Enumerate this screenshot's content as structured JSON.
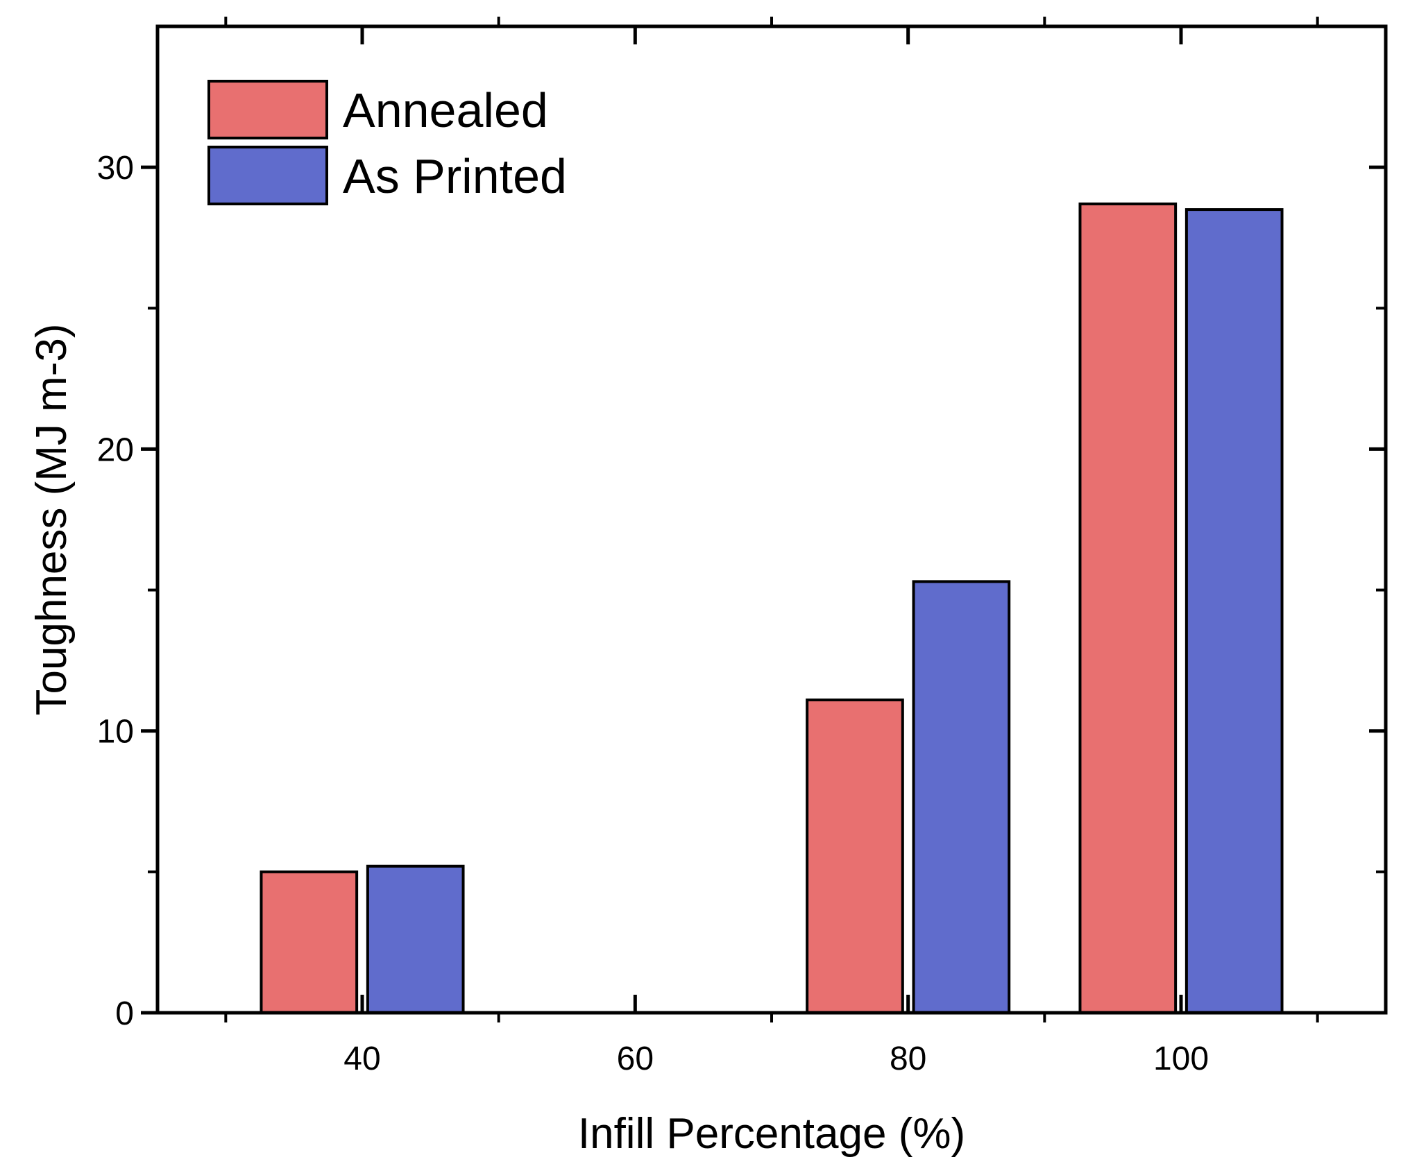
{
  "chart_data": {
    "type": "bar",
    "title": "",
    "xlabel": "Infill Percentage (%)",
    "ylabel": "Toughness (MJ m-3)",
    "xlim": [
      25,
      115
    ],
    "ylim": [
      0,
      35
    ],
    "x_ticks": [
      40,
      60,
      80,
      100
    ],
    "x_minor_ticks": [
      30,
      50,
      70,
      90,
      110
    ],
    "y_ticks": [
      0,
      10,
      20,
      30
    ],
    "y_minor_ticks": [
      5,
      15,
      25
    ],
    "x_tick_labels": [
      "40",
      "60",
      "80",
      "100"
    ],
    "y_tick_labels": [
      "0",
      "10",
      "20",
      "30"
    ],
    "grid": false,
    "legend_position": "top-left",
    "categories": [
      40,
      80,
      100
    ],
    "series": [
      {
        "name": "Annealed",
        "color": "#e87070",
        "values": [
          5.0,
          11.1,
          28.7
        ]
      },
      {
        "name": "As Printed",
        "color": "#606ccc",
        "values": [
          5.2,
          15.3,
          28.5
        ]
      }
    ]
  }
}
